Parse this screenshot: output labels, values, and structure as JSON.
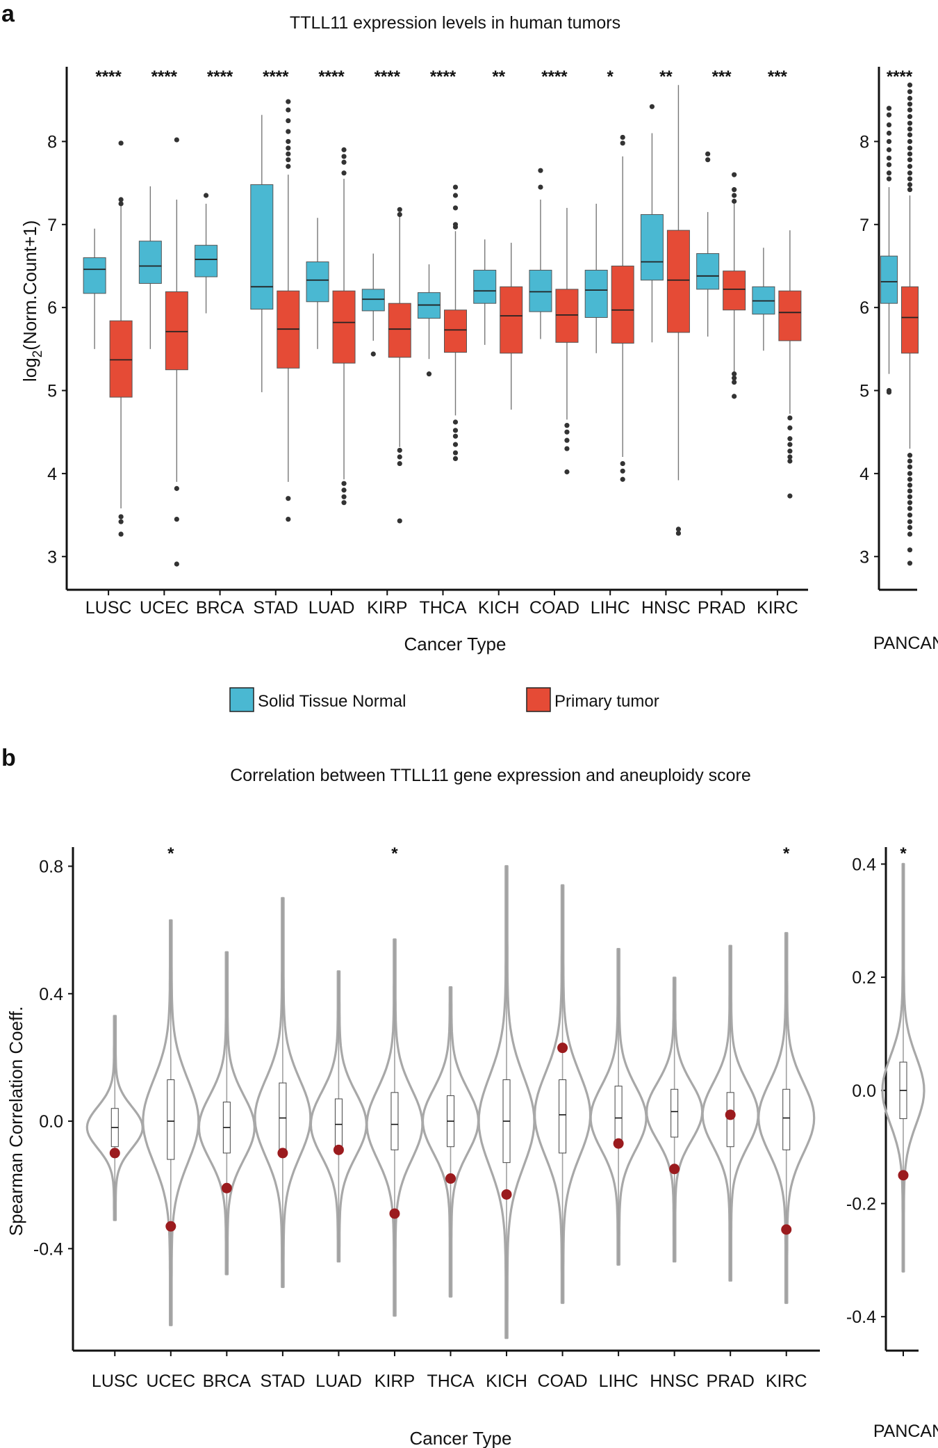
{
  "panel_a": {
    "letter": "a",
    "chart_data": {
      "type": "boxplot",
      "title": "TTLL11 expression levels in human tumors",
      "ylabel_main": "log",
      "ylabel_sub": "2",
      "ylabel_rest": "(Norm.Count+1)",
      "xlabel": "Cancer Type",
      "ylim": [
        2.6,
        8.9
      ],
      "yticks": [
        3,
        4,
        5,
        6,
        7,
        8
      ],
      "legend": [
        {
          "name": "Solid Tissue Normal",
          "color": "#4ab8d2"
        },
        {
          "name": "Primary tumor",
          "color": "#e54b36"
        }
      ],
      "groups": [
        {
          "label": "LUSC",
          "sig": "****",
          "normal": {
            "q1": 6.17,
            "median": 6.46,
            "q3": 6.6,
            "lo": 5.5,
            "hi": 6.95,
            "out": []
          },
          "tumor": {
            "q1": 4.92,
            "median": 5.37,
            "q3": 5.84,
            "lo": 3.58,
            "hi": 7.22,
            "out": [
              7.98,
              7.3,
              7.25,
              3.48,
              3.42,
              3.27
            ]
          }
        },
        {
          "label": "UCEC",
          "sig": "****",
          "normal": {
            "q1": 6.29,
            "median": 6.5,
            "q3": 6.8,
            "lo": 5.5,
            "hi": 7.46,
            "out": []
          },
          "tumor": {
            "q1": 5.25,
            "median": 5.71,
            "q3": 6.19,
            "lo": 3.9,
            "hi": 7.3,
            "out": [
              8.02,
              3.82,
              3.45,
              2.91
            ]
          }
        },
        {
          "label": "BRCA",
          "sig": "****",
          "normal": {
            "q1": 6.37,
            "median": 6.58,
            "q3": 6.75,
            "lo": 5.93,
            "hi": 7.25,
            "out": [
              7.35
            ]
          }
        },
        {
          "label": "STAD",
          "sig": "****",
          "normal": {
            "q1": 5.98,
            "median": 6.25,
            "q3": 7.48,
            "lo": 4.98,
            "hi": 8.32,
            "out": []
          },
          "tumor": {
            "q1": 5.27,
            "median": 5.74,
            "q3": 6.2,
            "lo": 3.9,
            "hi": 7.6,
            "out": [
              8.48,
              8.38,
              8.25,
              8.12,
              8.0,
              7.92,
              7.85,
              7.78,
              7.7,
              3.7,
              3.45
            ]
          }
        },
        {
          "label": "LUAD",
          "sig": "****",
          "normal": {
            "q1": 6.07,
            "median": 6.33,
            "q3": 6.55,
            "lo": 5.5,
            "hi": 7.08,
            "out": []
          },
          "tumor": {
            "q1": 5.33,
            "median": 5.82,
            "q3": 6.2,
            "lo": 3.93,
            "hi": 7.55,
            "out": [
              7.9,
              7.82,
              7.75,
              7.62,
              3.88,
              3.8,
              3.72,
              3.65
            ]
          }
        },
        {
          "label": "KIRP",
          "sig": "****",
          "normal": {
            "q1": 5.96,
            "median": 6.1,
            "q3": 6.22,
            "lo": 5.6,
            "hi": 6.65,
            "out": [
              5.44
            ]
          },
          "tumor": {
            "q1": 5.4,
            "median": 5.74,
            "q3": 6.05,
            "lo": 4.32,
            "hi": 7.1,
            "out": [
              7.18,
              7.12,
              4.28,
              4.2,
              4.12,
              3.43
            ]
          }
        },
        {
          "label": "THCA",
          "sig": "****",
          "normal": {
            "q1": 5.87,
            "median": 6.03,
            "q3": 6.18,
            "lo": 5.38,
            "hi": 6.52,
            "out": [
              5.2
            ]
          },
          "tumor": {
            "q1": 5.46,
            "median": 5.73,
            "q3": 5.97,
            "lo": 4.7,
            "hi": 6.92,
            "out": [
              7.45,
              7.35,
              7.2,
              7.0,
              6.97,
              4.62,
              4.52,
              4.45,
              4.35,
              4.25,
              4.18
            ]
          }
        },
        {
          "label": "KICH",
          "sig": "**",
          "normal": {
            "q1": 6.05,
            "median": 6.2,
            "q3": 6.45,
            "lo": 5.55,
            "hi": 6.82,
            "out": []
          },
          "tumor": {
            "q1": 5.45,
            "median": 5.9,
            "q3": 6.25,
            "lo": 4.77,
            "hi": 6.78,
            "out": []
          }
        },
        {
          "label": "COAD",
          "sig": "****",
          "normal": {
            "q1": 5.95,
            "median": 6.19,
            "q3": 6.45,
            "lo": 5.62,
            "hi": 7.3,
            "out": [
              7.65,
              7.45
            ]
          },
          "tumor": {
            "q1": 5.58,
            "median": 5.91,
            "q3": 6.22,
            "lo": 4.65,
            "hi": 7.2,
            "out": [
              4.58,
              4.5,
              4.4,
              4.3,
              4.02
            ]
          }
        },
        {
          "label": "LIHC",
          "sig": "*",
          "normal": {
            "q1": 5.88,
            "median": 6.21,
            "q3": 6.45,
            "lo": 5.45,
            "hi": 7.25,
            "out": []
          },
          "tumor": {
            "q1": 5.57,
            "median": 5.97,
            "q3": 6.5,
            "lo": 4.2,
            "hi": 7.82,
            "out": [
              8.05,
              7.98,
              4.12,
              4.03,
              3.93
            ]
          }
        },
        {
          "label": "HNSC",
          "sig": "**",
          "normal": {
            "q1": 6.33,
            "median": 6.55,
            "q3": 7.12,
            "lo": 5.58,
            "hi": 8.1,
            "out": [
              8.42
            ]
          },
          "tumor": {
            "q1": 5.7,
            "median": 6.33,
            "q3": 6.93,
            "lo": 3.92,
            "hi": 8.68,
            "out": [
              3.33,
              3.28
            ]
          }
        },
        {
          "label": "PRAD",
          "sig": "***",
          "normal": {
            "q1": 6.22,
            "median": 6.38,
            "q3": 6.65,
            "lo": 5.65,
            "hi": 7.15,
            "out": [
              7.85,
              7.78
            ]
          },
          "tumor": {
            "q1": 5.97,
            "median": 6.22,
            "q3": 6.44,
            "lo": 5.18,
            "hi": 7.25,
            "out": [
              7.6,
              7.42,
              7.35,
              7.28,
              5.2,
              5.15,
              5.1,
              4.93
            ]
          }
        },
        {
          "label": "KIRC",
          "sig": "***",
          "normal": {
            "q1": 5.92,
            "median": 6.08,
            "q3": 6.25,
            "lo": 5.48,
            "hi": 6.72,
            "out": []
          },
          "tumor": {
            "q1": 5.6,
            "median": 5.94,
            "q3": 6.2,
            "lo": 4.72,
            "hi": 6.93,
            "out": [
              4.67,
              4.55,
              4.42,
              4.35,
              4.27,
              4.2,
              4.15,
              3.73
            ]
          }
        }
      ],
      "pancan": {
        "label": "PANCAN",
        "sig": "****",
        "normal": {
          "q1": 6.05,
          "median": 6.31,
          "q3": 6.62,
          "lo": 5.2,
          "hi": 7.45,
          "out": [
            8.4,
            8.32,
            8.2,
            8.1,
            8.0,
            7.9,
            7.8,
            7.72,
            7.62,
            7.55,
            5.0,
            4.98
          ]
        },
        "tumor": {
          "q1": 5.45,
          "median": 5.88,
          "q3": 6.25,
          "lo": 4.3,
          "hi": 7.35,
          "out": [
            8.68,
            8.6,
            8.52,
            8.45,
            8.38,
            8.3,
            8.22,
            8.15,
            8.08,
            8.0,
            7.92,
            7.85,
            7.78,
            7.7,
            7.62,
            7.55,
            7.48,
            7.42,
            4.22,
            4.15,
            4.08,
            4.0,
            3.93,
            3.86,
            3.79,
            3.72,
            3.65,
            3.58,
            3.5,
            3.42,
            3.35,
            3.27,
            3.08,
            2.92
          ]
        }
      }
    }
  },
  "panel_b": {
    "letter": "b",
    "chart_data": {
      "type": "violin",
      "title": "Correlation between TTLL11 gene expression and aneuploidy score",
      "ylabel": "Spearman Correlation Coeff.",
      "xlabel": "Cancer Type",
      "ylim": [
        -0.72,
        0.86
      ],
      "yticks": [
        0.8,
        0.4,
        0.0,
        -0.4
      ],
      "ytick_labels": [
        "0.8",
        "0.4",
        "0.0",
        "-0.4"
      ],
      "groups": [
        {
          "label": "LUSC",
          "sig": "",
          "dot": -0.1,
          "lo": -0.31,
          "hi": 0.33,
          "sd": 0.065,
          "q1": -0.08,
          "median": -0.02,
          "q3": 0.04
        },
        {
          "label": "UCEC",
          "sig": "*",
          "dot": -0.33,
          "lo": -0.64,
          "hi": 0.63,
          "sd": 0.13,
          "q1": -0.12,
          "median": 0.0,
          "q3": 0.13
        },
        {
          "label": "BRCA",
          "sig": "",
          "dot": -0.21,
          "lo": -0.48,
          "hi": 0.53,
          "sd": 0.1,
          "q1": -0.1,
          "median": -0.02,
          "q3": 0.06
        },
        {
          "label": "STAD",
          "sig": "",
          "dot": -0.1,
          "lo": -0.52,
          "hi": 0.7,
          "sd": 0.12,
          "q1": -0.1,
          "median": 0.01,
          "q3": 0.12
        },
        {
          "label": "LUAD",
          "sig": "",
          "dot": -0.09,
          "lo": -0.44,
          "hi": 0.47,
          "sd": 0.1,
          "q1": -0.08,
          "median": -0.01,
          "q3": 0.07
        },
        {
          "label": "KIRP",
          "sig": "*",
          "dot": -0.29,
          "lo": -0.61,
          "hi": 0.57,
          "sd": 0.11,
          "q1": -0.09,
          "median": -0.01,
          "q3": 0.09
        },
        {
          "label": "THCA",
          "sig": "",
          "dot": -0.18,
          "lo": -0.55,
          "hi": 0.42,
          "sd": 0.1,
          "q1": -0.08,
          "median": 0.0,
          "q3": 0.08
        },
        {
          "label": "KICH",
          "sig": "",
          "dot": -0.23,
          "lo": -0.68,
          "hi": 0.8,
          "sd": 0.14,
          "q1": -0.13,
          "median": 0.0,
          "q3": 0.13
        },
        {
          "label": "COAD",
          "sig": "",
          "dot": 0.23,
          "lo": -0.57,
          "hi": 0.74,
          "sd": 0.13,
          "q1": -0.1,
          "median": 0.02,
          "q3": 0.13
        },
        {
          "label": "LIHC",
          "sig": "",
          "dot": -0.07,
          "lo": -0.45,
          "hi": 0.54,
          "sd": 0.1,
          "q1": -0.08,
          "median": 0.01,
          "q3": 0.11
        },
        {
          "label": "HNSC",
          "sig": "",
          "dot": -0.15,
          "lo": -0.44,
          "hi": 0.45,
          "sd": 0.09,
          "q1": -0.05,
          "median": 0.03,
          "q3": 0.1
        },
        {
          "label": "PRAD",
          "sig": "",
          "dot": 0.02,
          "lo": -0.5,
          "hi": 0.55,
          "sd": 0.1,
          "q1": -0.08,
          "median": 0.02,
          "q3": 0.09
        },
        {
          "label": "KIRC",
          "sig": "*",
          "dot": -0.34,
          "lo": -0.57,
          "hi": 0.59,
          "sd": 0.11,
          "q1": -0.09,
          "median": 0.01,
          "q3": 0.1
        }
      ],
      "pancan": {
        "label": "PANCAN",
        "sig": "*",
        "ylim": [
          -0.46,
          0.43
        ],
        "yticks": [
          0.4,
          0.2,
          0.0,
          -0.2,
          -0.4
        ],
        "ytick_labels": [
          "0.4",
          "0.2",
          "0.0",
          "-0.2",
          "-0.4"
        ],
        "dot": -0.15,
        "lo": -0.32,
        "hi": 0.4,
        "sd": 0.06,
        "q1": -0.05,
        "median": 0.0,
        "q3": 0.05
      }
    }
  }
}
